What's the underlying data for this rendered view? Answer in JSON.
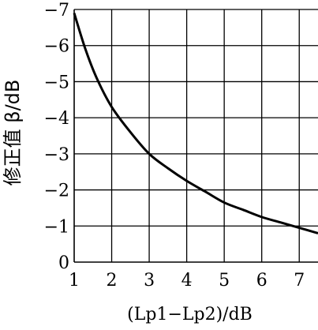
{
  "chart_data": {
    "type": "line",
    "title": "",
    "xlabel": "(Lp1−Lp2)/dB",
    "ylabel": "修正值 β/dB",
    "xlim": [
      1,
      7.5
    ],
    "ylim": [
      0,
      -7
    ],
    "grid": true,
    "x_ticks": [
      "1",
      "2",
      "3",
      "4",
      "5",
      "6",
      "7"
    ],
    "y_ticks": [
      "−7",
      "−6",
      "−5",
      "−4",
      "−3",
      "−2",
      "−1",
      "0"
    ],
    "series": [
      {
        "x": [
          1.0,
          1.3,
          1.6,
          2.0,
          2.5,
          3.0,
          3.5,
          4.0,
          4.5,
          5.0,
          5.5,
          6.0,
          6.5,
          7.0,
          7.5
        ],
        "y": [
          -6.9,
          -5.9,
          -5.1,
          -4.3,
          -3.6,
          -3.0,
          -2.6,
          -2.25,
          -1.95,
          -1.65,
          -1.45,
          -1.25,
          -1.1,
          -0.95,
          -0.8
        ]
      }
    ]
  }
}
